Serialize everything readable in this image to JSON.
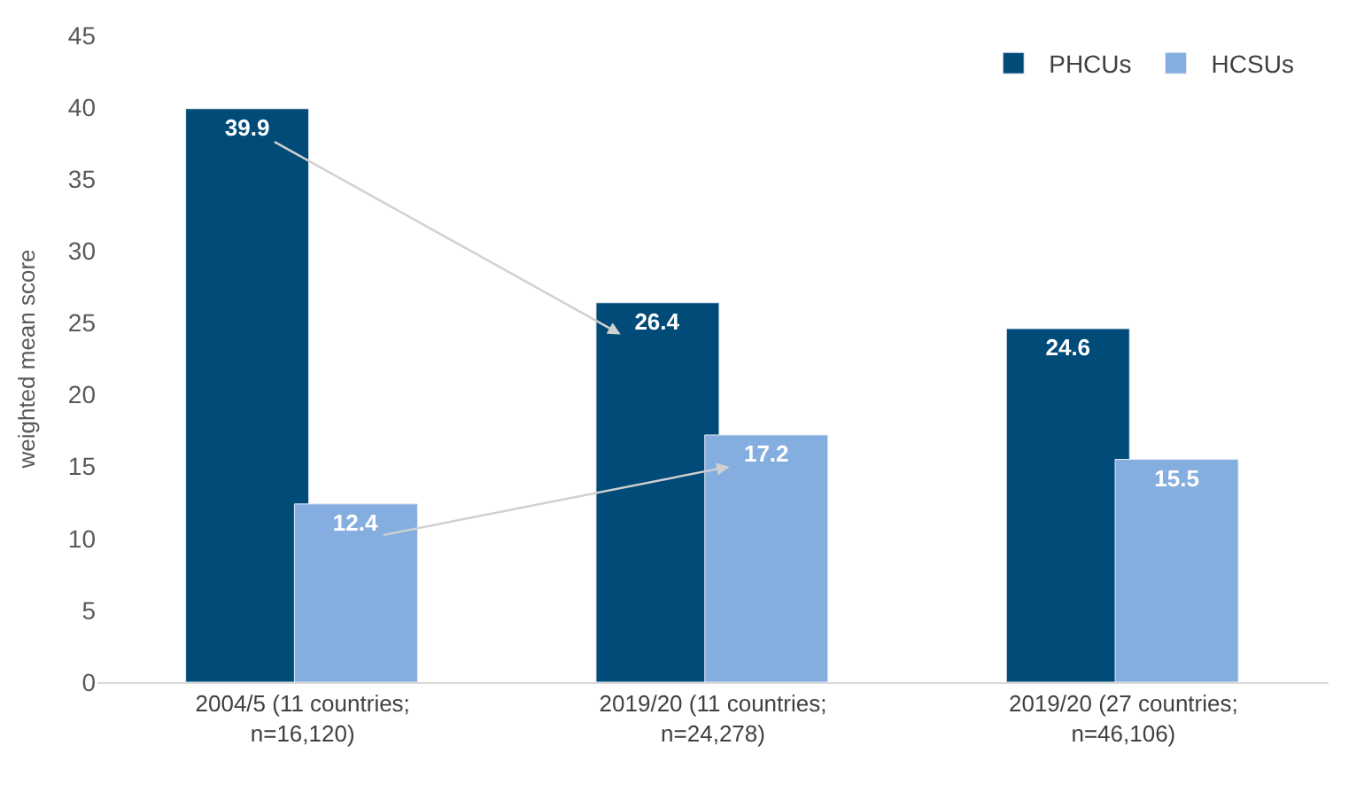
{
  "chart_data": {
    "type": "bar",
    "ylabel": "weighted mean score",
    "categories": [
      "2004/5 (11 countries;\nn=16,120)",
      "2019/20 (11 countries;\nn=24,278)",
      "2019/20 (27 countries;\nn=46,106)"
    ],
    "series": [
      {
        "name": "PHCUs",
        "color": "#004b78",
        "values": [
          39.9,
          26.4,
          24.6
        ]
      },
      {
        "name": "HCSUs",
        "color": "#85aee0",
        "values": [
          12.4,
          17.2,
          15.5
        ]
      }
    ],
    "ylim": [
      0,
      45
    ],
    "yticks": [
      0,
      5,
      10,
      15,
      20,
      25,
      30,
      35,
      40,
      45
    ],
    "grid": false,
    "legend": "top right",
    "data_labels": true
  }
}
